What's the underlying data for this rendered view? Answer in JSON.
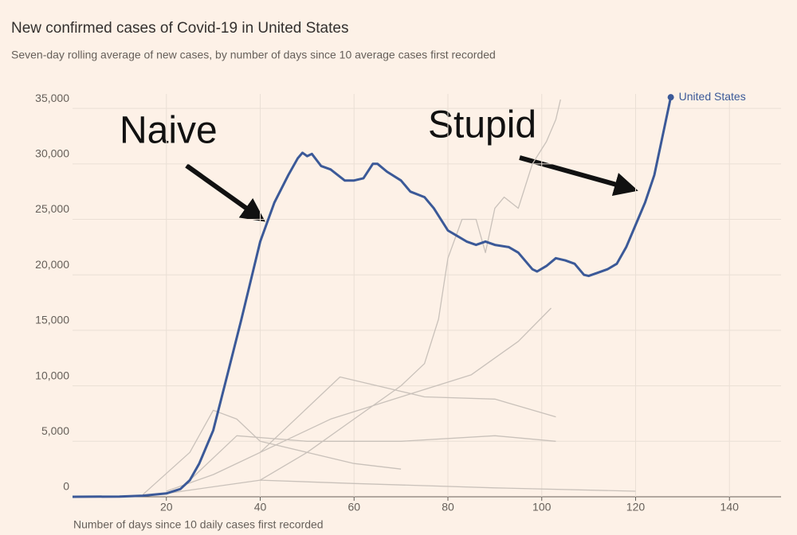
{
  "chart_data": {
    "type": "line",
    "title": "New confirmed cases of Covid-19 in United States",
    "subtitle": "Seven-day rolling average of new cases, by number of days since 10 average cases first recorded",
    "x_label": "Number of days since 10 daily cases first recorded",
    "annotations": [
      "Naive",
      "Stupid"
    ],
    "xlim": [
      0,
      151
    ],
    "ylim": [
      0,
      36300
    ],
    "xticks": [
      20,
      40,
      60,
      80,
      100,
      120,
      140
    ],
    "yticks": [
      0,
      {
        "value": 5000,
        "label": "5,000"
      },
      {
        "value": 10000,
        "label": "10,000"
      },
      {
        "value": 15000,
        "label": "15,000"
      },
      {
        "value": 20000,
        "label": "20,000"
      },
      {
        "value": 25000,
        "label": "25,000"
      },
      {
        "value": 30000,
        "label": "30,000"
      },
      {
        "value": 35000,
        "label": "35,000"
      }
    ],
    "grid": true,
    "series": [
      {
        "color": "#c9c1ba",
        "x": [
          40,
          50,
          60,
          70,
          75,
          78,
          80,
          83,
          86,
          88,
          90,
          92,
          95,
          98,
          101,
          103,
          104
        ],
        "values": [
          1500,
          4000,
          7000,
          10000,
          12000,
          16000,
          21500,
          25000,
          25000,
          22000,
          26000,
          27000,
          26000,
          30000,
          32000,
          34000,
          35800
        ]
      },
      {
        "color": "#c9c1ba",
        "x": [
          20,
          30,
          45,
          55,
          70,
          85,
          95,
          102
        ],
        "values": [
          500,
          2000,
          5000,
          7000,
          9000,
          11000,
          14000,
          17000
        ]
      },
      {
        "color": "#c9c1ba",
        "x": [
          15,
          25,
          30,
          35,
          40,
          50,
          60,
          70
        ],
        "values": [
          200,
          4000,
          7800,
          7000,
          5000,
          4000,
          3000,
          2500
        ]
      },
      {
        "color": "#c9c1ba",
        "x": [
          25,
          35,
          50,
          70,
          90,
          103
        ],
        "values": [
          1500,
          5500,
          5000,
          5000,
          5500,
          5000
        ]
      },
      {
        "color": "#c9c1ba",
        "x": [
          40,
          50,
          57,
          65,
          75,
          90,
          103
        ],
        "values": [
          4000,
          8000,
          10800,
          10000,
          9000,
          8800,
          7200
        ]
      },
      {
        "color": "#c9c1ba",
        "x": [
          20,
          40,
          60,
          90,
          120
        ],
        "values": [
          300,
          1500,
          1200,
          800,
          500
        ]
      },
      {
        "name": "United States",
        "color": "#3b5998",
        "x": [
          0,
          10,
          15,
          20,
          23,
          25,
          27,
          30,
          33,
          36,
          38,
          40,
          43,
          46,
          48,
          49,
          50,
          51,
          53,
          55,
          58,
          60,
          62,
          64,
          65,
          67,
          70,
          72,
          75,
          77,
          80,
          82,
          84,
          86,
          88,
          90,
          93,
          95,
          98,
          99,
          101,
          103,
          105,
          107,
          109,
          110,
          112,
          114,
          116,
          118,
          120,
          122,
          124,
          126,
          127.5
        ],
        "values": [
          0,
          20,
          100,
          300,
          700,
          1500,
          3000,
          6000,
          11000,
          16000,
          19500,
          23000,
          26500,
          29000,
          30500,
          31000,
          30700,
          30900,
          29800,
          29500,
          28500,
          28500,
          28700,
          30000,
          30000,
          29300,
          28500,
          27500,
          27000,
          26000,
          24000,
          23500,
          23000,
          22700,
          23000,
          22700,
          22500,
          22000,
          20500,
          20300,
          20800,
          21500,
          21300,
          21000,
          20000,
          19900,
          20200,
          20500,
          21000,
          22500,
          24500,
          26500,
          29000,
          33000,
          36000
        ]
      }
    ]
  }
}
